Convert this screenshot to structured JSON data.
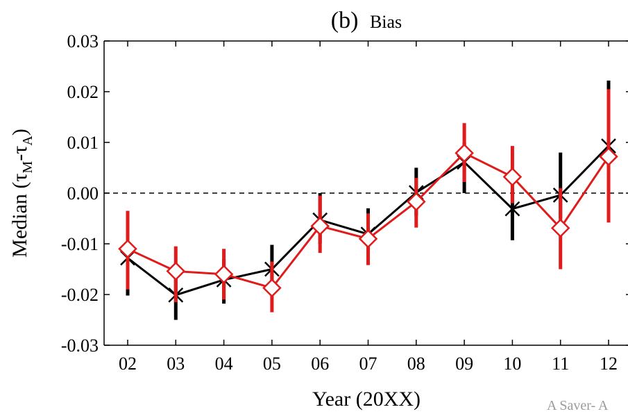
{
  "chart_data": {
    "type": "line",
    "title_prefix": "(b)",
    "title_suffix": "Bias",
    "xlabel": "Year (20XX)",
    "ylabel_main": "Median (τ",
    "ylabel_sub1": "M",
    "ylabel_mid": "-τ",
    "ylabel_sub2": "A",
    "ylabel_end": ")",
    "categories": [
      "02",
      "03",
      "04",
      "05",
      "06",
      "07",
      "08",
      "09",
      "10",
      "11",
      "12"
    ],
    "ylim": [
      -0.03,
      0.03
    ],
    "yticks": [
      "0.03",
      "0.02",
      "0.01",
      "0.00",
      "-0.01",
      "-0.02",
      "-0.03"
    ],
    "ytick_values": [
      0.03,
      0.02,
      0.01,
      0.0,
      -0.01,
      -0.02,
      -0.03
    ],
    "reference_line": 0.0,
    "series": [
      {
        "color": "#000000",
        "marker": "x",
        "values": [
          -0.0128,
          -0.0201,
          -0.0171,
          -0.015,
          -0.0053,
          -0.0081,
          0.0001,
          0.0061,
          -0.0031,
          -0.0004,
          0.0093
        ],
        "err_low": [
          -0.0202,
          -0.025,
          -0.0218,
          -0.02,
          -0.01,
          -0.0125,
          -0.0045,
          0.0,
          -0.0093,
          -0.005,
          0.006
        ],
        "err_high": [
          -0.01,
          -0.016,
          -0.013,
          -0.0102,
          0.0,
          -0.003,
          0.005,
          0.01,
          0.001,
          0.008,
          0.0222
        ]
      },
      {
        "color": "#e01b1b",
        "marker": "diamond",
        "values": [
          -0.011,
          -0.0154,
          -0.016,
          -0.0187,
          -0.0065,
          -0.009,
          -0.0017,
          0.0079,
          0.0032,
          -0.0069,
          0.0072
        ],
        "err_low": [
          -0.019,
          -0.0215,
          -0.021,
          -0.0235,
          -0.0118,
          -0.0142,
          -0.0068,
          0.0022,
          -0.002,
          -0.015,
          -0.0058
        ],
        "err_high": [
          -0.0035,
          -0.0105,
          -0.011,
          -0.0135,
          -0.0005,
          -0.004,
          0.003,
          0.0138,
          0.0093,
          0.001,
          0.0205
        ]
      }
    ]
  },
  "watermark": "A Saver- A"
}
